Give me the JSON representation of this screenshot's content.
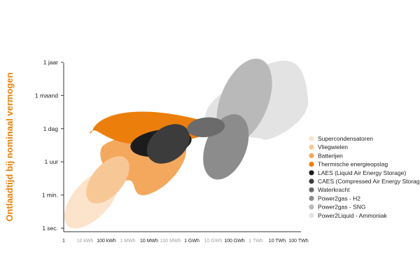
{
  "chart_data": {
    "type": "area",
    "title": "",
    "xlabel": "",
    "ylabel": "Ontlaadtijd bij nominaal vermogen",
    "ylabel_color": "#e8820e",
    "x_scale": "log",
    "x_ticks": [
      {
        "label": "1",
        "value": "1 Wh",
        "emphasis": true
      },
      {
        "label": "10 kWh",
        "value": "10 kWh",
        "emphasis": false
      },
      {
        "label": "100 kWh",
        "value": "100 kWh",
        "emphasis": true
      },
      {
        "label": "1 MWh",
        "value": "1 MWh",
        "emphasis": false
      },
      {
        "label": "10 MWh",
        "value": "10 MWh",
        "emphasis": true
      },
      {
        "label": "100 MWh",
        "value": "100 MWh",
        "emphasis": false
      },
      {
        "label": "1 GWh",
        "value": "1 GWh",
        "emphasis": true
      },
      {
        "label": "10 GWh",
        "value": "10 GWh",
        "emphasis": false
      },
      {
        "label": "100 GWh",
        "value": "100 GWh",
        "emphasis": true
      },
      {
        "label": "1 TWh",
        "value": "1 TWh",
        "emphasis": false
      },
      {
        "label": "10 TWh",
        "value": "10 TWh",
        "emphasis": true
      },
      {
        "label": "100 TWh",
        "value": "100 TWh",
        "emphasis": true
      }
    ],
    "y_ticks": [
      "1 sec.",
      "1 min.",
      "1 uur",
      "1 dag",
      "1 maand",
      "1 jaar"
    ],
    "legend_position": "right",
    "grid": false,
    "series": [
      {
        "name": "Supercondensatoren",
        "color": "#fbe3cc",
        "x_range": [
          "1 Wh",
          "100 kWh"
        ],
        "y_range": [
          "1 sec.",
          "1 uur"
        ]
      },
      {
        "name": "Vliegwielen",
        "color": "#f8c796",
        "x_range": [
          "10 kWh",
          "1 MWh"
        ],
        "y_range": [
          "1 min.",
          "1 uur"
        ]
      },
      {
        "name": "Batterijen",
        "color": "#f3a85d",
        "x_range": [
          "10 kWh",
          "1 GWh"
        ],
        "y_range": [
          "1 min.",
          "1 dag"
        ]
      },
      {
        "name": "Thermische energieopslag",
        "color": "#ec7f0c",
        "x_range": [
          "100 kWh",
          "1 GWh"
        ],
        "y_range": [
          "1 uur",
          "1 maand"
        ]
      },
      {
        "name": "LAES (Liquid Air Energy Storage)",
        "color": "#1c1c1c",
        "x_range": [
          "1 MWh",
          "100 MWh"
        ],
        "y_range": [
          "1 uur",
          "1 dag"
        ]
      },
      {
        "name": "CAES (Compressed Air Energy Storage)",
        "color": "#3c3c3c",
        "x_range": [
          "10 MWh",
          "1 GWh"
        ],
        "y_range": [
          "1 uur",
          "1 dag"
        ]
      },
      {
        "name": "Waterkracht",
        "color": "#6b6b6b",
        "x_range": [
          "1 GWh",
          "10 GWh"
        ],
        "y_range": [
          "1 dag",
          "1 dag"
        ]
      },
      {
        "name": "Power2gas - H2",
        "color": "#8c8c8c",
        "x_range": [
          "10 GWh",
          "100 GWh"
        ],
        "y_range": [
          "1 uur",
          "1 maand"
        ]
      },
      {
        "name": "Power2gas - SNG",
        "color": "#b9b9b9",
        "x_range": [
          "10 GWh",
          "1 TWh"
        ],
        "y_range": [
          "1 dag",
          "1 jaar"
        ]
      },
      {
        "name": "Power2Liquid - Ammoniak",
        "color": "#e3e3e3",
        "x_range": [
          "10 GWh",
          "10 TWh"
        ],
        "y_range": [
          "1 dag",
          "1 jaar"
        ]
      }
    ]
  }
}
